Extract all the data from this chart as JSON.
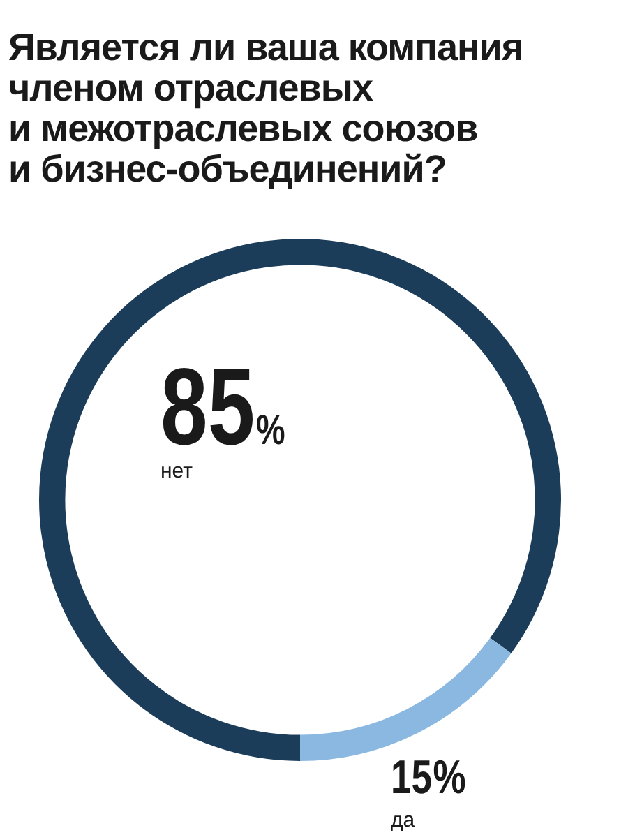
{
  "chart_data": {
    "type": "donut",
    "title": "Является ли ваша компания\nчленом отраслевых\nи межотраслевых союзов\nи бизнес-объединений?",
    "categories": [
      "нет",
      "да"
    ],
    "values": [
      85,
      15
    ],
    "value_labels": [
      "85%",
      "15%"
    ],
    "colors": [
      "#1c3d5a",
      "#8ab8e0"
    ],
    "legend": false
  }
}
